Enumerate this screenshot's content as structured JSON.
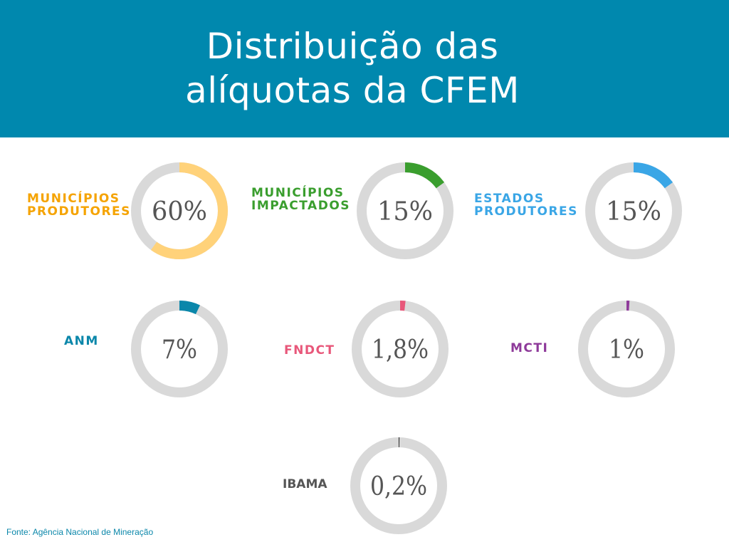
{
  "header": {
    "title_line1": "Distribuição das",
    "title_line2": "alíquotas da CFEM"
  },
  "chart_data": {
    "type": "pie",
    "title": "Distribuição das alíquotas da CFEM",
    "series": [
      {
        "name": "MUNICÍPIOS PRODUTORES",
        "label_line1": "MUNICÍPIOS",
        "label_line2": "PRODUTORES",
        "value": 60,
        "display": "60%",
        "color": "#ffd27a",
        "label_color": "#f5a300"
      },
      {
        "name": "MUNICÍPIOS IMPACTADOS",
        "label_line1": "MUNICÍPIOS",
        "label_line2": "IMPACTADOS",
        "value": 15,
        "display": "15%",
        "color": "#3a9e2e",
        "label_color": "#3a9e2e"
      },
      {
        "name": "ESTADOS PRODUTORES",
        "label_line1": "ESTADOS",
        "label_line2": "PRODUTORES",
        "value": 15,
        "display": "15%",
        "color": "#3aa6e6",
        "label_color": "#3aa6e6"
      },
      {
        "name": "ANM",
        "label_line1": "ANM",
        "label_line2": "",
        "value": 7,
        "display": "7%",
        "color": "#0b87aa",
        "label_color": "#0b87aa"
      },
      {
        "name": "FNDCT",
        "label_line1": "FNDCT",
        "label_line2": "",
        "value": 1.8,
        "display": "1,8%",
        "color": "#e8577a",
        "label_color": "#e8577a"
      },
      {
        "name": "MCTI",
        "label_line1": "MCTI",
        "label_line2": "",
        "value": 1,
        "display": "1%",
        "color": "#8e3a9a",
        "label_color": "#8e3a9a"
      },
      {
        "name": "IBAMA",
        "label_line1": "IBAMA",
        "label_line2": "",
        "value": 0.2,
        "display": "0,2%",
        "color": "#222222",
        "label_color": "#555555"
      }
    ],
    "track_color": "#d9d9d9"
  },
  "footer": {
    "source": "Fonte: Agência Nacional de Mineração"
  }
}
